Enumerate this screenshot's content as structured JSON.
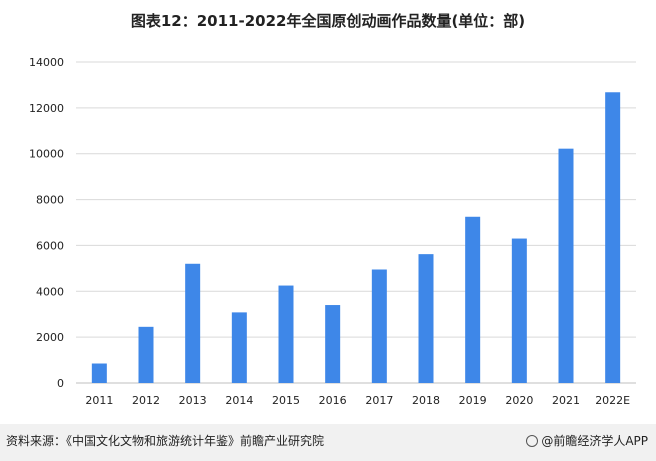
{
  "title": "图表12：2011-2022年全国原创动画作品数量(单位：部)",
  "footer": {
    "source": "资料来源：《中国文化文物和旅游统计年鉴》前瞻产业研究院",
    "brand": "@前瞻经济学人APP"
  },
  "colors": {
    "bar": "#3e87e8",
    "grid": "#d9d9d9",
    "footer_bg": "#f1f1f1"
  },
  "chart_data": {
    "type": "bar",
    "categories": [
      "2011",
      "2012",
      "2013",
      "2014",
      "2015",
      "2016",
      "2017",
      "2018",
      "2019",
      "2020",
      "2021",
      "2022E"
    ],
    "values": [
      850,
      2450,
      5200,
      3080,
      4250,
      3400,
      4950,
      5620,
      7250,
      6300,
      10220,
      12680
    ],
    "title": "图表12：2011-2022年全国原创动画作品数量(单位：部)",
    "xlabel": "",
    "ylabel": "",
    "ylim": [
      0,
      14000
    ],
    "yticks": [
      "0",
      "2000",
      "4000",
      "6000",
      "8000",
      "10000",
      "12000",
      "14000"
    ],
    "grid": true,
    "legend": "none"
  }
}
